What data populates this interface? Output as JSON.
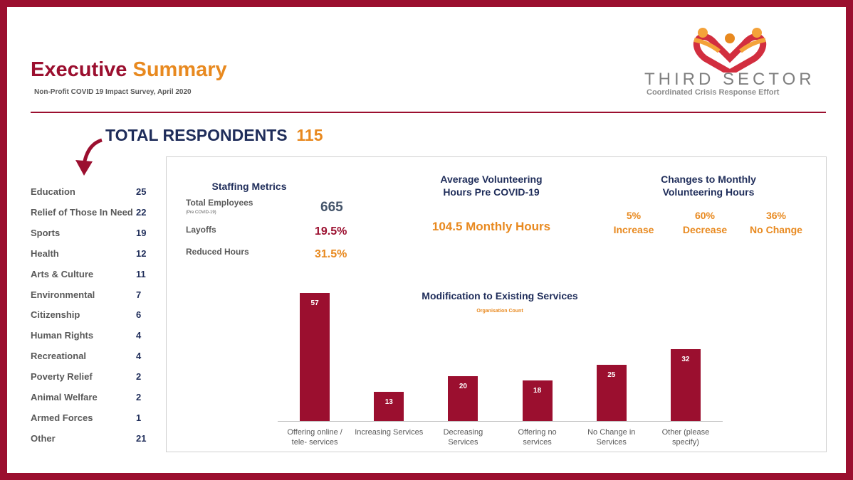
{
  "header": {
    "title_part1": "Executive",
    "title_part2": "Summary",
    "subtitle": "Non-Profit COVID 19 Impact Survey, April 2020"
  },
  "logo": {
    "name": "THIRD SECTOR",
    "tagline": "Coordinated Crisis Response Effort"
  },
  "respondents": {
    "label": "TOTAL RESPONDENTS",
    "total": 115
  },
  "sectors": [
    {
      "name": "Education",
      "count": 25
    },
    {
      "name": "Relief of Those In Need",
      "count": 22
    },
    {
      "name": "Sports",
      "count": 19
    },
    {
      "name": "Health",
      "count": 12
    },
    {
      "name": "Arts & Culture",
      "count": 11
    },
    {
      "name": "Environmental",
      "count": 7
    },
    {
      "name": "Citizenship",
      "count": 6
    },
    {
      "name": "Human Rights",
      "count": 4
    },
    {
      "name": "Recreational",
      "count": 4
    },
    {
      "name": "Poverty Relief",
      "count": 2
    },
    {
      "name": "Animal Welfare",
      "count": 2
    },
    {
      "name": "Armed Forces",
      "count": 1
    },
    {
      "name": "Other",
      "count": 21
    }
  ],
  "staffing": {
    "title": "Staffing Metrics",
    "total_label": "Total Employees",
    "total_note": "(Pre COVID-19)",
    "total_value": 665,
    "layoffs_label": "Layoffs",
    "layoffs_value": "19.5%",
    "reduced_label": "Reduced Hours",
    "reduced_value": "31.5%"
  },
  "volunteering": {
    "title": "Average Volunteering Hours Pre COVID-19",
    "value": "104.5 Monthly Hours"
  },
  "changes": {
    "title": "Changes to Monthly Volunteering Hours",
    "items": [
      {
        "value": "5%",
        "label": "Increase"
      },
      {
        "value": "60%",
        "label": "Decrease"
      },
      {
        "value": "36%",
        "label": "No Change"
      }
    ]
  },
  "chart_data": {
    "type": "bar",
    "title": "Modification to Existing Services",
    "subtitle": "Organisation Count",
    "categories": [
      "Offering online / tele- services",
      "Increasing Services",
      "Decreasing Services",
      "Offering no services",
      "No Change in Services",
      "Other (please specify)"
    ],
    "values": [
      57,
      13,
      20,
      18,
      25,
      32
    ],
    "color": "#9b0f2f",
    "ylim": [
      0,
      60
    ]
  }
}
